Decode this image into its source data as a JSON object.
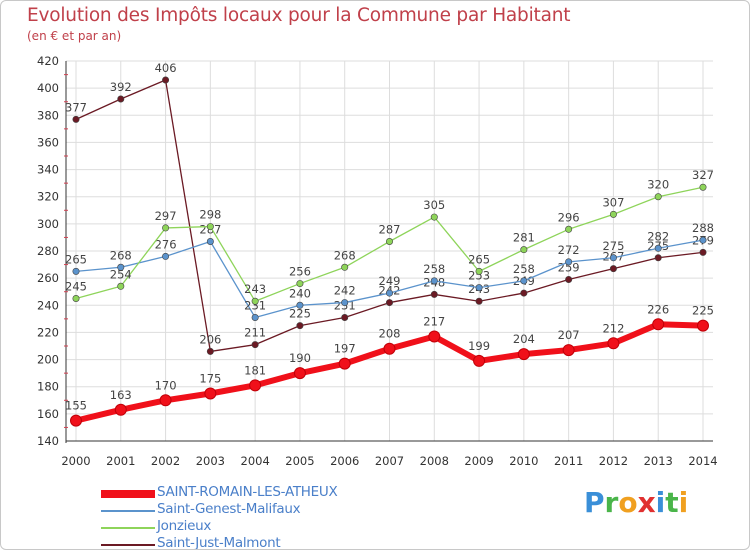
{
  "chart_data": {
    "type": "line",
    "title": "Evolution des Impôts locaux pour la Commune par Habitant",
    "subtitle": "(en € et par an)",
    "xlabel": "",
    "ylabel": "",
    "ylim": [
      140,
      420
    ],
    "yticks": [
      "140",
      "160",
      "180",
      "200",
      "220",
      "240",
      "260",
      "280",
      "300",
      "320",
      "340",
      "360",
      "380",
      "400",
      "420"
    ],
    "categories": [
      "2000",
      "2001",
      "2002",
      "2003",
      "2004",
      "2005",
      "2006",
      "2007",
      "2008",
      "2009",
      "2010",
      "2011",
      "2012",
      "2013",
      "2014"
    ],
    "grid": true,
    "series": [
      {
        "name": "Saint-Just-Malmont",
        "color": "#6b1a24",
        "values": [
          377,
          392,
          406,
          206,
          211,
          225,
          231,
          242,
          248,
          243,
          249,
          259,
          267,
          275,
          279
        ],
        "labels": [
          "377",
          "392",
          "406",
          "206",
          "211",
          "225",
          "231",
          "242",
          "248",
          "243",
          "249",
          "259",
          "267",
          "275",
          "279"
        ]
      },
      {
        "name": "Saint-Genest-Malifaux",
        "color": "#5b93cc",
        "values": [
          265,
          268,
          276,
          287,
          231,
          240,
          242,
          249,
          258,
          253,
          258,
          272,
          275,
          282,
          288
        ],
        "labels": [
          "265",
          "268",
          "276",
          "287",
          "231",
          "240",
          "242",
          "249",
          "258",
          "253",
          "258",
          "272",
          "275",
          "282",
          "288"
        ]
      },
      {
        "name": "Jonzieux",
        "color": "#8ed45a",
        "values": [
          245,
          254,
          297,
          298,
          243,
          256,
          268,
          287,
          305,
          265,
          281,
          296,
          307,
          320,
          327
        ],
        "labels": [
          "245",
          "254",
          "297",
          "298",
          "243",
          "256",
          "268",
          "287",
          "305",
          "265",
          "281",
          "296",
          "307",
          "320",
          "327"
        ]
      },
      {
        "name": "SAINT-ROMAIN-LES-ATHEUX",
        "color": "#f0101a",
        "values": [
          155,
          163,
          170,
          175,
          181,
          190,
          197,
          208,
          217,
          199,
          204,
          207,
          212,
          226,
          225
        ],
        "labels": [
          "155",
          "163",
          "170",
          "175",
          "181",
          "190",
          "197",
          "208",
          "217",
          "199",
          "204",
          "207",
          "212",
          "226",
          "225"
        ]
      }
    ]
  },
  "legend": [
    {
      "label": "SAINT-ROMAIN-LES-ATHEUX",
      "color": "#f0101a",
      "weight": "thick"
    },
    {
      "label": "Saint-Genest-Malifaux",
      "color": "#5b93cc",
      "weight": "thin"
    },
    {
      "label": "Jonzieux",
      "color": "#8ed45a",
      "weight": "thin"
    },
    {
      "label": "Saint-Just-Malmont",
      "color": "#6b1a24",
      "weight": "thin"
    }
  ],
  "logo": {
    "letters": [
      "P",
      "r",
      "o",
      "x",
      "i",
      "t",
      "i"
    ],
    "colors": [
      "#3a8fd8",
      "#4ab54a",
      "#f0a020",
      "#e03030",
      "#3a8fd8",
      "#4ab54a",
      "#f0a020"
    ]
  }
}
